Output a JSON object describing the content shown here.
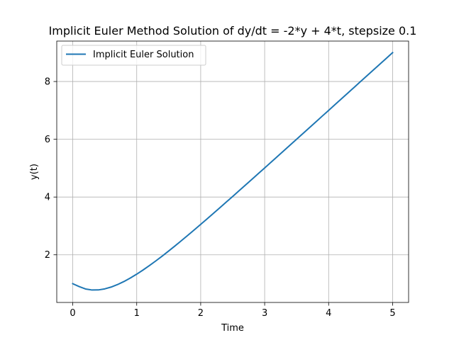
{
  "chart_data": {
    "type": "line",
    "title": "Implicit Euler Method Solution of dy/dt = -2*y + 4*t, stepsize 0.1",
    "xlabel": "Time",
    "ylabel": "y(t)",
    "xlim": [
      -0.25,
      5.25
    ],
    "ylim": [
      0.35,
      9.4
    ],
    "xticks": [
      0,
      1,
      2,
      3,
      4,
      5
    ],
    "xtick_labels": [
      "0",
      "1",
      "2",
      "3",
      "4",
      "5"
    ],
    "yticks": [
      2,
      4,
      6,
      8
    ],
    "ytick_labels": [
      "2",
      "4",
      "6",
      "8"
    ],
    "grid": true,
    "legend_position": "upper-left",
    "series": [
      {
        "name": "Implicit Euler Solution",
        "color": "#1f77b4",
        "x": [
          0.0,
          0.1,
          0.2,
          0.3,
          0.4,
          0.5,
          0.6,
          0.7,
          0.8,
          0.9,
          1.0,
          1.1,
          1.2,
          1.3,
          1.4,
          1.5,
          1.6,
          1.7,
          1.8,
          1.9,
          2.0,
          2.1,
          2.2,
          2.3,
          2.4,
          2.5,
          2.6,
          2.7,
          2.8,
          2.9,
          3.0,
          3.1,
          3.2,
          3.3,
          3.4,
          3.5,
          3.6,
          3.7,
          3.8,
          3.9,
          4.0,
          4.1,
          4.2,
          4.3,
          4.4,
          4.5,
          4.6,
          4.7,
          4.8,
          4.9,
          5.0
        ],
        "y": [
          1.0,
          0.9,
          0.817,
          0.781,
          0.784,
          0.82,
          0.883,
          0.97,
          1.075,
          1.196,
          1.33,
          1.475,
          1.629,
          1.791,
          1.959,
          2.133,
          2.311,
          2.492,
          2.677,
          2.864,
          3.053,
          3.244,
          3.437,
          3.631,
          3.826,
          4.021,
          4.218,
          4.415,
          4.612,
          4.81,
          5.008,
          5.207,
          5.406,
          5.605,
          5.804,
          6.003,
          6.203,
          6.402,
          6.602,
          6.802,
          7.001,
          7.201,
          7.401,
          7.601,
          7.801,
          8.001,
          8.2,
          8.4,
          8.6,
          8.8,
          9.0
        ]
      }
    ]
  }
}
